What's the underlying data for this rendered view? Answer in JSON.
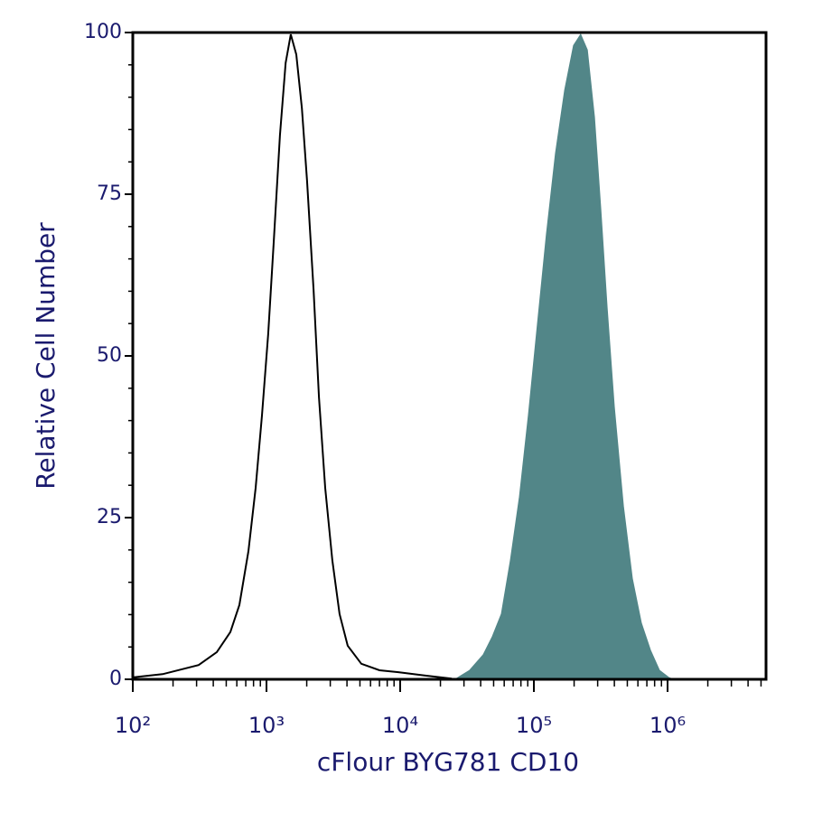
{
  "chart_data": {
    "type": "histogram-overlay",
    "xlabel": "cFlour BYG781 CD10",
    "ylabel": "Relative Cell Number",
    "xscale": "log",
    "xlim": [
      100,
      5450000
    ],
    "xticks": [
      {
        "value": 100,
        "label": "10²"
      },
      {
        "value": 1000,
        "label": "10³"
      },
      {
        "value": 10000,
        "label": "10⁴"
      },
      {
        "value": 100000,
        "label": "10⁵"
      },
      {
        "value": 1000000,
        "label": "10⁶"
      }
    ],
    "ylim": [
      0,
      100
    ],
    "yticks": [
      0,
      25,
      50,
      75,
      100
    ],
    "series": [
      {
        "color": "#000000",
        "filled": false,
        "x": [
          100,
          167,
          311,
          425,
          537,
          627,
          733,
          830,
          925,
          1030,
          1130,
          1260,
          1390,
          1520,
          1670,
          1840,
          2010,
          2250,
          2470,
          2750,
          3110,
          3520,
          4050,
          5120,
          7000,
          9690,
          15200,
          24300
        ],
        "values": [
          0.3,
          0.8,
          2.2,
          4.2,
          7.3,
          11.5,
          19.8,
          29.6,
          40.8,
          53.4,
          67.3,
          84.1,
          95.3,
          99.7,
          96.6,
          88.3,
          77.1,
          60.3,
          43.6,
          29.6,
          18.4,
          10.1,
          5.2,
          2.4,
          1.4,
          1.1,
          0.6,
          0.1
        ]
      },
      {
        "color": "#528688",
        "filled": true,
        "x": [
          26200,
          33100,
          41800,
          48900,
          57100,
          66700,
          78000,
          91000,
          106000,
          124000,
          145000,
          170000,
          198000,
          224000,
          251000,
          284000,
          316000,
          353000,
          399000,
          467000,
          545000,
          637000,
          745000,
          869000,
          1020000,
          1100000
        ],
        "values": [
          0.1,
          1.4,
          3.8,
          6.6,
          10.1,
          18.4,
          28.2,
          40.8,
          54.7,
          68.7,
          81.3,
          91.1,
          98.0,
          99.7,
          97.3,
          86.9,
          72.9,
          57.5,
          42.2,
          26.8,
          15.6,
          8.7,
          4.5,
          1.4,
          0.3,
          0
        ]
      }
    ]
  }
}
